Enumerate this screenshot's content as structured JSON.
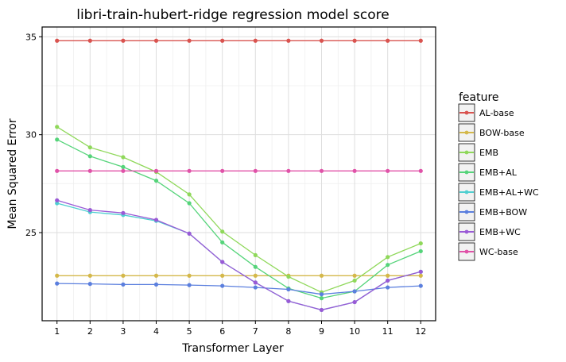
{
  "chart_data": {
    "type": "line",
    "title": "libri-train-hubert-ridge regression model score",
    "xlabel": "Transformer Layer",
    "ylabel": "Mean Squared Error",
    "x": [
      1,
      2,
      3,
      4,
      5,
      6,
      7,
      8,
      9,
      10,
      11,
      12
    ],
    "xlim": [
      0.55,
      12.45
    ],
    "ylim": [
      20.5,
      35.5
    ],
    "yticks": [
      25,
      30,
      35
    ],
    "grid": true,
    "legend": {
      "title": "feature",
      "placement": "right"
    },
    "series": [
      {
        "name": "AL-base",
        "color": "#d9534f",
        "values": [
          34.8,
          34.8,
          34.8,
          34.8,
          34.8,
          34.8,
          34.8,
          34.8,
          34.8,
          34.8,
          34.8,
          34.8
        ]
      },
      {
        "name": "BOW-base",
        "color": "#d4b84a",
        "values": [
          22.8,
          22.8,
          22.8,
          22.8,
          22.8,
          22.8,
          22.8,
          22.8,
          22.8,
          22.8,
          22.8,
          22.8
        ]
      },
      {
        "name": "EMB",
        "color": "#8fd85a",
        "values": [
          30.4,
          29.35,
          28.85,
          28.1,
          26.95,
          25.05,
          23.85,
          22.75,
          21.95,
          22.55,
          23.75,
          24.45
        ]
      },
      {
        "name": "EMB+AL",
        "color": "#55d47a",
        "values": [
          29.75,
          28.9,
          28.35,
          27.65,
          26.5,
          24.5,
          23.25,
          22.15,
          21.65,
          22.0,
          23.35,
          24.05
        ]
      },
      {
        "name": "EMB+AL+WC",
        "color": "#4fcfd0",
        "values": [
          26.5,
          26.05,
          25.9,
          25.6,
          24.95,
          23.5,
          22.45,
          21.5,
          21.05,
          21.45,
          22.55,
          23.0
        ]
      },
      {
        "name": "EMB+BOW",
        "color": "#5b7fde",
        "values": [
          22.4,
          22.38,
          22.35,
          22.35,
          22.32,
          22.28,
          22.2,
          22.1,
          21.85,
          22.0,
          22.2,
          22.28
        ]
      },
      {
        "name": "EMB+WC",
        "color": "#9a5ad6",
        "values": [
          26.65,
          26.15,
          26.0,
          25.65,
          24.95,
          23.5,
          22.45,
          21.5,
          21.05,
          21.45,
          22.55,
          23.0
        ]
      },
      {
        "name": "WC-base",
        "color": "#e052a8",
        "values": [
          28.15,
          28.15,
          28.15,
          28.15,
          28.15,
          28.15,
          28.15,
          28.15,
          28.15,
          28.15,
          28.15,
          28.15
        ]
      }
    ]
  }
}
